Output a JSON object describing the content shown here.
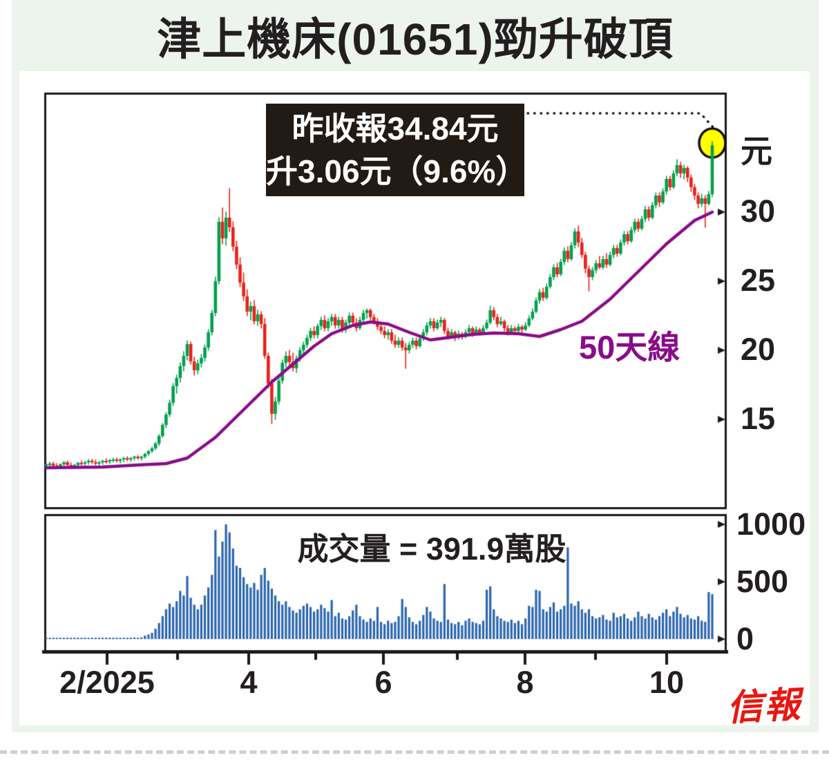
{
  "title": "津上機床(01651)勁升破頂",
  "annotation": {
    "line1": "昨收報34.84元",
    "line2": "升3.06元（9.6%）"
  },
  "ma_label": "50天線",
  "volume_label": "成交量 = 391.9萬股",
  "logo": "信報",
  "colors": {
    "up": "#00a04d",
    "down": "#e92218",
    "ma_line": "#8a0b8a",
    "volume_bar": "#2a65af",
    "annotation_bg": "#221a14",
    "annotation_text": "#ffffff",
    "panel_bg": "#edf3ed",
    "highlight_circle": "#ffff00",
    "logo_red": "#e8170f",
    "axis": "#1a1a1a"
  },
  "chart_data": {
    "type": "candlestick+volume",
    "title": "津上機床(01651)勁升破頂",
    "price_axis": {
      "unit": "元",
      "tick_marks": [
        35,
        30,
        25,
        20,
        15
      ],
      "labeled_ticks": [
        "30",
        "25",
        "20",
        "15"
      ],
      "visible_range": [
        8.6,
        38.6
      ]
    },
    "volume_axis": {
      "labeled_ticks": [
        "1000",
        "500",
        "0"
      ],
      "unit": "萬股",
      "range": [
        0,
        1080
      ]
    },
    "x_axis": {
      "labels": [
        "2/2025",
        "4",
        "6",
        "8",
        "10"
      ],
      "minor_ticks_between": true
    },
    "last_close": 34.84,
    "change": 3.06,
    "change_pct": 9.6,
    "last_volume_wan": 391.9,
    "ma50_points": [
      [
        0,
        11.5
      ],
      [
        16,
        11.55
      ],
      [
        26,
        11.7
      ],
      [
        34,
        11.8
      ],
      [
        40,
        12.2
      ],
      [
        48,
        13.7
      ],
      [
        56,
        15.7
      ],
      [
        64,
        17.7
      ],
      [
        70,
        19.0
      ],
      [
        76,
        20.3
      ],
      [
        81,
        21.2
      ],
      [
        87,
        21.8
      ],
      [
        92,
        22.05
      ],
      [
        97,
        21.9
      ],
      [
        103,
        21.3
      ],
      [
        109,
        20.75
      ],
      [
        115,
        20.95
      ],
      [
        121,
        21.15
      ],
      [
        127,
        21.25
      ],
      [
        134,
        21.2
      ],
      [
        140,
        21.0
      ],
      [
        146,
        21.5
      ],
      [
        152,
        22.1
      ],
      [
        160,
        23.7
      ],
      [
        168,
        25.7
      ],
      [
        176,
        27.7
      ],
      [
        184,
        29.4
      ],
      [
        189,
        30.0
      ]
    ],
    "candles": [
      [
        11.7,
        11.85,
        11.55,
        11.75
      ],
      [
        11.75,
        11.9,
        11.6,
        11.8
      ],
      [
        11.8,
        11.9,
        11.55,
        11.65
      ],
      [
        11.65,
        11.8,
        11.5,
        11.6
      ],
      [
        11.6,
        11.8,
        11.5,
        11.75
      ],
      [
        11.75,
        11.95,
        11.65,
        11.9
      ],
      [
        11.9,
        12.0,
        11.6,
        11.7
      ],
      [
        11.7,
        11.85,
        11.45,
        11.55
      ],
      [
        11.55,
        11.75,
        11.45,
        11.7
      ],
      [
        11.7,
        11.9,
        11.6,
        11.85
      ],
      [
        11.85,
        12.0,
        11.7,
        11.8
      ],
      [
        11.8,
        11.95,
        11.6,
        11.9
      ],
      [
        11.9,
        12.1,
        11.75,
        12.0
      ],
      [
        12.0,
        12.1,
        11.8,
        11.9
      ],
      [
        11.9,
        12.05,
        11.7,
        11.8
      ],
      [
        11.8,
        11.95,
        11.65,
        11.9
      ],
      [
        11.9,
        12.05,
        11.75,
        12.0
      ],
      [
        12.0,
        12.15,
        11.85,
        11.95
      ],
      [
        11.95,
        12.1,
        11.8,
        12.05
      ],
      [
        12.05,
        12.2,
        11.9,
        12.1
      ],
      [
        12.1,
        12.2,
        11.9,
        12.0
      ],
      [
        12.0,
        12.15,
        11.85,
        12.1
      ],
      [
        12.1,
        12.25,
        11.95,
        12.2
      ],
      [
        12.2,
        12.3,
        12.0,
        12.1
      ],
      [
        12.1,
        12.25,
        11.95,
        12.2
      ],
      [
        12.2,
        12.35,
        12.05,
        12.3
      ],
      [
        12.3,
        12.4,
        12.1,
        12.2
      ],
      [
        12.2,
        12.35,
        12.05,
        12.3
      ],
      [
        12.3,
        12.55,
        12.2,
        12.5
      ],
      [
        12.5,
        12.75,
        12.4,
        12.7
      ],
      [
        12.7,
        13.0,
        12.6,
        12.9
      ],
      [
        12.9,
        13.35,
        12.8,
        13.25
      ],
      [
        13.25,
        13.9,
        13.1,
        13.8
      ],
      [
        13.8,
        14.7,
        13.7,
        14.6
      ],
      [
        14.6,
        15.5,
        14.4,
        15.35
      ],
      [
        15.35,
        16.4,
        15.2,
        16.2
      ],
      [
        16.2,
        17.6,
        16.0,
        17.4
      ],
      [
        17.4,
        18.2,
        16.9,
        18.0
      ],
      [
        18.0,
        19.1,
        17.7,
        18.85
      ],
      [
        18.85,
        19.9,
        18.5,
        19.6
      ],
      [
        19.6,
        20.7,
        19.3,
        20.45
      ],
      [
        20.45,
        20.6,
        19.0,
        19.2
      ],
      [
        19.2,
        19.5,
        18.2,
        18.55
      ],
      [
        18.55,
        19.3,
        18.3,
        19.05
      ],
      [
        19.05,
        19.7,
        18.8,
        19.45
      ],
      [
        19.45,
        20.4,
        19.2,
        20.2
      ],
      [
        20.2,
        21.5,
        20.0,
        21.3
      ],
      [
        21.3,
        22.9,
        21.1,
        22.7
      ],
      [
        22.7,
        25.3,
        22.5,
        25.0
      ],
      [
        25.0,
        29.6,
        24.8,
        29.3
      ],
      [
        29.3,
        30.3,
        27.7,
        28.1
      ],
      [
        28.1,
        30.0,
        27.6,
        29.6
      ],
      [
        29.6,
        31.7,
        28.6,
        28.9
      ],
      [
        28.9,
        29.3,
        27.2,
        27.5
      ],
      [
        27.5,
        27.9,
        25.9,
        26.2
      ],
      [
        26.2,
        26.7,
        24.6,
        24.9
      ],
      [
        24.9,
        25.6,
        23.6,
        23.9
      ],
      [
        23.9,
        24.4,
        22.5,
        22.8
      ],
      [
        22.8,
        23.5,
        22.2,
        23.2
      ],
      [
        23.2,
        23.6,
        21.9,
        22.1
      ],
      [
        22.1,
        22.9,
        21.8,
        22.6
      ],
      [
        22.6,
        22.8,
        21.6,
        21.9
      ],
      [
        21.9,
        22.3,
        19.4,
        19.6
      ],
      [
        19.6,
        19.8,
        17.3,
        17.6
      ],
      [
        17.6,
        17.9,
        14.7,
        15.4
      ],
      [
        15.4,
        16.6,
        15.0,
        16.3
      ],
      [
        16.3,
        18.0,
        16.1,
        17.8
      ],
      [
        17.8,
        19.3,
        17.6,
        19.1
      ],
      [
        19.1,
        19.9,
        18.8,
        19.6
      ],
      [
        19.6,
        20.0,
        18.9,
        19.15
      ],
      [
        19.15,
        19.8,
        18.5,
        18.7
      ],
      [
        18.7,
        19.6,
        18.4,
        19.4
      ],
      [
        19.4,
        20.2,
        19.2,
        20.0
      ],
      [
        20.0,
        20.6,
        19.6,
        20.4
      ],
      [
        20.4,
        21.1,
        20.2,
        20.9
      ],
      [
        20.9,
        21.6,
        20.7,
        21.4
      ],
      [
        21.4,
        21.7,
        20.9,
        21.1
      ],
      [
        21.1,
        21.9,
        20.9,
        21.75
      ],
      [
        21.75,
        22.4,
        21.5,
        22.2
      ],
      [
        22.2,
        22.5,
        21.4,
        21.6
      ],
      [
        21.6,
        22.3,
        21.4,
        22.1
      ],
      [
        22.1,
        22.6,
        21.8,
        22.4
      ],
      [
        22.4,
        22.6,
        21.6,
        21.8
      ],
      [
        21.8,
        22.4,
        21.6,
        22.2
      ],
      [
        22.2,
        22.4,
        21.3,
        21.5
      ],
      [
        21.5,
        22.2,
        21.3,
        22.0
      ],
      [
        22.0,
        22.7,
        21.8,
        22.5
      ],
      [
        22.5,
        22.7,
        21.8,
        22.0
      ],
      [
        22.0,
        22.3,
        21.4,
        21.6
      ],
      [
        21.6,
        22.4,
        21.5,
        22.2
      ],
      [
        22.2,
        22.9,
        22.0,
        22.7
      ],
      [
        22.7,
        23.0,
        22.3,
        22.9
      ],
      [
        22.9,
        23.0,
        22.2,
        22.4
      ],
      [
        22.4,
        22.6,
        21.9,
        22.1
      ],
      [
        22.1,
        22.3,
        21.5,
        21.7
      ],
      [
        21.7,
        22.0,
        21.2,
        21.4
      ],
      [
        21.4,
        21.7,
        20.9,
        21.1
      ],
      [
        21.1,
        21.5,
        20.8,
        21.3
      ],
      [
        21.3,
        21.5,
        20.5,
        20.7
      ],
      [
        20.7,
        21.1,
        20.2,
        20.4
      ],
      [
        20.4,
        20.9,
        20.2,
        20.7
      ],
      [
        20.7,
        20.9,
        20.0,
        20.2
      ],
      [
        20.2,
        20.5,
        18.7,
        20.0
      ],
      [
        20.0,
        20.6,
        19.8,
        20.4
      ],
      [
        20.4,
        20.9,
        20.2,
        20.7
      ],
      [
        20.7,
        20.9,
        20.1,
        20.3
      ],
      [
        20.3,
        21.0,
        20.2,
        20.85
      ],
      [
        20.85,
        21.5,
        20.7,
        21.3
      ],
      [
        21.3,
        22.0,
        21.1,
        21.8
      ],
      [
        21.8,
        22.3,
        21.6,
        22.1
      ],
      [
        22.1,
        22.3,
        21.4,
        21.6
      ],
      [
        21.6,
        22.2,
        21.5,
        22.0
      ],
      [
        22.0,
        22.4,
        21.7,
        22.2
      ],
      [
        22.2,
        22.3,
        21.2,
        21.4
      ],
      [
        21.4,
        21.6,
        20.8,
        21.0
      ],
      [
        21.0,
        21.5,
        20.9,
        21.3
      ],
      [
        21.3,
        21.4,
        20.7,
        20.9
      ],
      [
        20.9,
        21.4,
        20.8,
        21.2
      ],
      [
        21.2,
        21.3,
        20.8,
        21.0
      ],
      [
        21.0,
        21.5,
        20.9,
        21.3
      ],
      [
        21.3,
        21.8,
        21.2,
        21.6
      ],
      [
        21.6,
        21.7,
        21.0,
        21.2
      ],
      [
        21.2,
        21.7,
        21.1,
        21.5
      ],
      [
        21.5,
        21.6,
        21.1,
        21.3
      ],
      [
        21.3,
        21.8,
        21.2,
        21.6
      ],
      [
        21.6,
        22.2,
        21.5,
        22.0
      ],
      [
        22.0,
        23.2,
        21.9,
        22.9
      ],
      [
        22.9,
        23.1,
        22.2,
        22.4
      ],
      [
        22.4,
        22.6,
        21.7,
        21.9
      ],
      [
        21.9,
        22.4,
        21.8,
        22.1
      ],
      [
        22.1,
        22.2,
        21.4,
        21.6
      ],
      [
        21.6,
        21.8,
        21.1,
        21.3
      ],
      [
        21.3,
        21.8,
        21.2,
        21.6
      ],
      [
        21.6,
        21.7,
        21.2,
        21.4
      ],
      [
        21.4,
        21.9,
        21.3,
        21.7
      ],
      [
        21.7,
        21.8,
        21.3,
        21.5
      ],
      [
        21.5,
        22.0,
        21.4,
        21.8
      ],
      [
        21.8,
        22.5,
        21.7,
        22.3
      ],
      [
        22.3,
        23.0,
        22.2,
        22.8
      ],
      [
        22.8,
        23.8,
        22.7,
        23.6
      ],
      [
        23.6,
        24.4,
        23.4,
        24.2
      ],
      [
        24.2,
        24.5,
        23.6,
        23.8
      ],
      [
        23.8,
        24.8,
        23.7,
        24.6
      ],
      [
        24.6,
        25.5,
        24.5,
        25.3
      ],
      [
        25.3,
        26.2,
        25.1,
        26.0
      ],
      [
        26.0,
        26.3,
        25.3,
        25.5
      ],
      [
        25.5,
        26.6,
        25.4,
        26.4
      ],
      [
        26.4,
        27.4,
        26.2,
        27.2
      ],
      [
        27.2,
        27.5,
        26.4,
        26.6
      ],
      [
        26.6,
        27.8,
        26.5,
        27.6
      ],
      [
        27.6,
        28.8,
        27.4,
        28.6
      ],
      [
        28.6,
        29.0,
        27.5,
        27.8
      ],
      [
        27.8,
        28.1,
        26.7,
        26.9
      ],
      [
        26.9,
        27.1,
        25.6,
        25.9
      ],
      [
        25.9,
        26.1,
        24.3,
        25.3
      ],
      [
        25.3,
        26.0,
        25.1,
        25.8
      ],
      [
        25.8,
        26.5,
        25.6,
        26.3
      ],
      [
        26.3,
        26.8,
        25.9,
        26.0
      ],
      [
        26.0,
        26.8,
        25.9,
        26.6
      ],
      [
        26.6,
        27.0,
        26.0,
        26.2
      ],
      [
        26.2,
        27.1,
        26.1,
        26.9
      ],
      [
        26.9,
        27.6,
        26.7,
        27.4
      ],
      [
        27.4,
        27.6,
        26.8,
        27.0
      ],
      [
        27.0,
        28.0,
        26.9,
        27.8
      ],
      [
        27.8,
        28.6,
        27.6,
        28.4
      ],
      [
        28.4,
        28.6,
        27.7,
        27.9
      ],
      [
        27.9,
        28.9,
        27.8,
        28.7
      ],
      [
        28.7,
        29.5,
        28.5,
        29.3
      ],
      [
        29.3,
        29.5,
        28.6,
        28.8
      ],
      [
        28.8,
        29.7,
        28.7,
        29.5
      ],
      [
        29.5,
        30.4,
        29.3,
        30.2
      ],
      [
        30.2,
        30.4,
        29.4,
        29.6
      ],
      [
        29.6,
        30.7,
        29.5,
        30.5
      ],
      [
        30.5,
        31.4,
        30.3,
        31.2
      ],
      [
        31.2,
        31.4,
        30.4,
        30.7
      ],
      [
        30.7,
        31.7,
        30.6,
        31.5
      ],
      [
        31.5,
        32.6,
        31.3,
        32.4
      ],
      [
        32.4,
        32.6,
        31.6,
        31.8
      ],
      [
        31.8,
        33.0,
        31.7,
        32.8
      ],
      [
        32.8,
        33.8,
        32.6,
        33.4
      ],
      [
        33.4,
        33.6,
        32.5,
        32.8
      ],
      [
        32.8,
        33.4,
        32.4,
        33.2
      ],
      [
        33.2,
        33.3,
        32.2,
        32.5
      ],
      [
        32.5,
        32.7,
        31.5,
        31.8
      ],
      [
        31.8,
        32.0,
        30.9,
        31.2
      ],
      [
        31.2,
        31.4,
        30.3,
        30.6
      ],
      [
        30.6,
        31.3,
        30.4,
        31.0
      ],
      [
        31.0,
        31.2,
        28.9,
        30.6
      ],
      [
        30.6,
        31.5,
        30.5,
        31.3
      ],
      [
        31.3,
        35.1,
        31.1,
        34.84
      ]
    ],
    "volumes": [
      8,
      6,
      5,
      7,
      6,
      9,
      7,
      6,
      5,
      8,
      10,
      7,
      6,
      8,
      9,
      7,
      6,
      8,
      10,
      12,
      9,
      8,
      10,
      12,
      10,
      14,
      12,
      15,
      30,
      40,
      55,
      90,
      140,
      200,
      260,
      310,
      280,
      330,
      420,
      380,
      550,
      360,
      300,
      260,
      300,
      380,
      450,
      560,
      950,
      720,
      850,
      1000,
      930,
      790,
      640,
      620,
      540,
      480,
      450,
      490,
      430,
      560,
      620,
      510,
      440,
      380,
      330,
      300,
      330,
      280,
      250,
      230,
      260,
      290,
      310,
      280,
      240,
      260,
      300,
      270,
      240,
      340,
      200,
      230,
      180,
      170,
      200,
      250,
      300,
      200,
      170,
      150,
      180,
      160,
      280,
      150,
      130,
      160,
      140,
      150,
      200,
      350,
      280,
      190,
      150,
      130,
      160,
      210,
      280,
      240,
      180,
      160,
      150,
      480,
      170,
      140,
      130,
      150,
      120,
      160,
      180,
      150,
      140,
      130,
      160,
      430,
      460,
      260,
      200,
      180,
      160,
      150,
      170,
      140,
      160,
      130,
      180,
      290,
      280,
      430,
      420,
      260,
      240,
      280,
      320,
      240,
      260,
      290,
      800,
      310,
      290,
      330,
      260,
      230,
      260,
      200,
      180,
      190,
      210,
      170,
      160,
      230,
      190,
      200,
      220,
      180,
      160,
      190,
      240,
      200,
      180,
      220,
      190,
      170,
      200,
      230,
      260,
      200,
      240,
      280,
      220,
      190,
      210,
      180,
      170,
      200,
      160,
      150,
      410,
      392
    ]
  }
}
